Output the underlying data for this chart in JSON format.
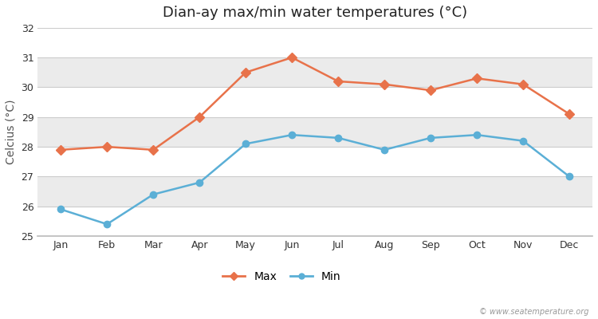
{
  "title": "Dian-ay max/min water temperatures (°C)",
  "ylabel": "Celcius (°C)",
  "months": [
    "Jan",
    "Feb",
    "Mar",
    "Apr",
    "May",
    "Jun",
    "Jul",
    "Aug",
    "Sep",
    "Oct",
    "Nov",
    "Dec"
  ],
  "max_values": [
    27.9,
    28.0,
    27.9,
    29.0,
    30.5,
    31.0,
    30.2,
    30.1,
    29.9,
    30.3,
    30.1,
    29.1
  ],
  "min_values": [
    25.9,
    25.4,
    26.4,
    26.8,
    28.1,
    28.4,
    28.3,
    27.9,
    28.3,
    28.4,
    28.2,
    27.0
  ],
  "max_color": "#e8724a",
  "min_color": "#5bafd6",
  "ylim": [
    25,
    32
  ],
  "yticks": [
    25,
    26,
    27,
    28,
    29,
    30,
    31,
    32
  ],
  "bg_color": "#ffffff",
  "band_colors": [
    "#ffffff",
    "#ebebeb"
  ],
  "grid_color": "#cccccc",
  "legend_labels": [
    "Max",
    "Min"
  ],
  "watermark": "© www.seatemperature.org",
  "title_fontsize": 13,
  "label_fontsize": 10,
  "tick_fontsize": 9
}
